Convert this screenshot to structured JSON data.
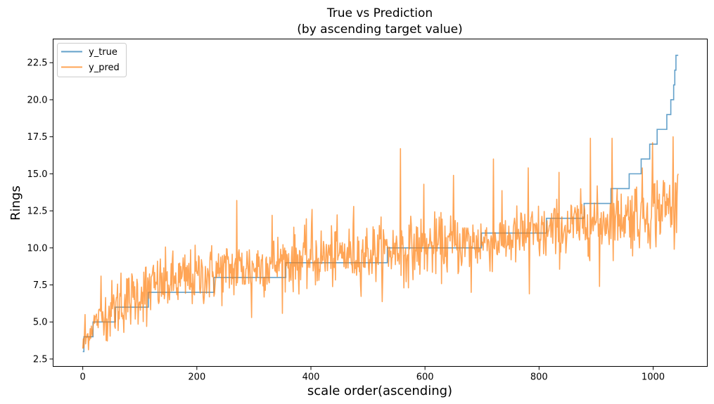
{
  "chart_data": {
    "type": "line",
    "title": "True vs Prediction",
    "subtitle": "(by ascending target value)",
    "xlabel": "scale order(ascending)",
    "ylabel": "Rings",
    "xlim": [
      -52,
      1095
    ],
    "ylim": [
      2.0,
      24.1
    ],
    "x_ticks": [
      0,
      200,
      400,
      600,
      800,
      1000
    ],
    "x_tick_labels": [
      "0",
      "200",
      "400",
      "600",
      "800",
      "1000"
    ],
    "y_ticks": [
      2.5,
      5.0,
      7.5,
      10.0,
      12.5,
      15.0,
      17.5,
      20.0,
      22.5
    ],
    "y_tick_labels": [
      "2.5",
      "5.0",
      "7.5",
      "10.0",
      "12.5",
      "15.0",
      "17.5",
      "20.0",
      "22.5"
    ],
    "grid": false,
    "legend_position": "upper-left",
    "n_points": 1045,
    "series": [
      {
        "name": "y_true",
        "color": "#1f77b4",
        "opacity": 0.7,
        "steps": [
          {
            "value": 3,
            "from": 0,
            "to": 1
          },
          {
            "value": 4,
            "from": 2,
            "to": 17
          },
          {
            "value": 5,
            "from": 18,
            "to": 56
          },
          {
            "value": 6,
            "from": 57,
            "to": 114
          },
          {
            "value": 7,
            "from": 115,
            "to": 229
          },
          {
            "value": 8,
            "from": 230,
            "to": 355
          },
          {
            "value": 9,
            "from": 356,
            "to": 533
          },
          {
            "value": 10,
            "from": 534,
            "to": 698
          },
          {
            "value": 11,
            "from": 699,
            "to": 812
          },
          {
            "value": 12,
            "from": 813,
            "to": 878
          },
          {
            "value": 13,
            "from": 879,
            "to": 925
          },
          {
            "value": 14,
            "from": 926,
            "to": 957
          },
          {
            "value": 15,
            "from": 958,
            "to": 978
          },
          {
            "value": 16,
            "from": 979,
            "to": 993
          },
          {
            "value": 17,
            "from": 994,
            "to": 1006
          },
          {
            "value": 18,
            "from": 1007,
            "to": 1023
          },
          {
            "value": 19,
            "from": 1024,
            "to": 1030
          },
          {
            "value": 20,
            "from": 1031,
            "to": 1035
          },
          {
            "value": 21,
            "from": 1036,
            "to": 1037
          },
          {
            "value": 22,
            "from": 1038,
            "to": 1039
          },
          {
            "value": 23,
            "from": 1040,
            "to": 1044
          }
        ]
      },
      {
        "name": "y_pred",
        "color": "#ff7f0e",
        "opacity": 0.7,
        "trend": [
          {
            "x": 0,
            "y": 3.3
          },
          {
            "x": 20,
            "y": 5.0
          },
          {
            "x": 60,
            "y": 6.0
          },
          {
            "x": 115,
            "y": 7.3
          },
          {
            "x": 230,
            "y": 8.3
          },
          {
            "x": 356,
            "y": 9.1
          },
          {
            "x": 534,
            "y": 9.8
          },
          {
            "x": 699,
            "y": 10.4
          },
          {
            "x": 813,
            "y": 11.0
          },
          {
            "x": 879,
            "y": 11.6
          },
          {
            "x": 958,
            "y": 12.2
          },
          {
            "x": 1044,
            "y": 13.0
          }
        ],
        "noise_sd": 1.0,
        "spikes": [
          {
            "x": 0,
            "y": 3.2
          },
          {
            "x": 4,
            "y": 5.5
          },
          {
            "x": 32,
            "y": 8.1
          },
          {
            "x": 67,
            "y": 8.3
          },
          {
            "x": 112,
            "y": 4.7
          },
          {
            "x": 270,
            "y": 13.2
          },
          {
            "x": 296,
            "y": 5.3
          },
          {
            "x": 332,
            "y": 12.2
          },
          {
            "x": 402,
            "y": 12.6
          },
          {
            "x": 475,
            "y": 12.8
          },
          {
            "x": 557,
            "y": 16.7
          },
          {
            "x": 563,
            "y": 7.3
          },
          {
            "x": 598,
            "y": 14.3
          },
          {
            "x": 650,
            "y": 14.9
          },
          {
            "x": 681,
            "y": 7.0
          },
          {
            "x": 720,
            "y": 16.0
          },
          {
            "x": 781,
            "y": 15.4
          },
          {
            "x": 783,
            "y": 6.9
          },
          {
            "x": 835,
            "y": 15.1
          },
          {
            "x": 890,
            "y": 17.4
          },
          {
            "x": 906,
            "y": 7.4
          },
          {
            "x": 928,
            "y": 17.4
          },
          {
            "x": 999,
            "y": 17.1
          },
          {
            "x": 1035,
            "y": 17.5
          },
          {
            "x": 1044,
            "y": 15.0
          }
        ]
      }
    ]
  }
}
